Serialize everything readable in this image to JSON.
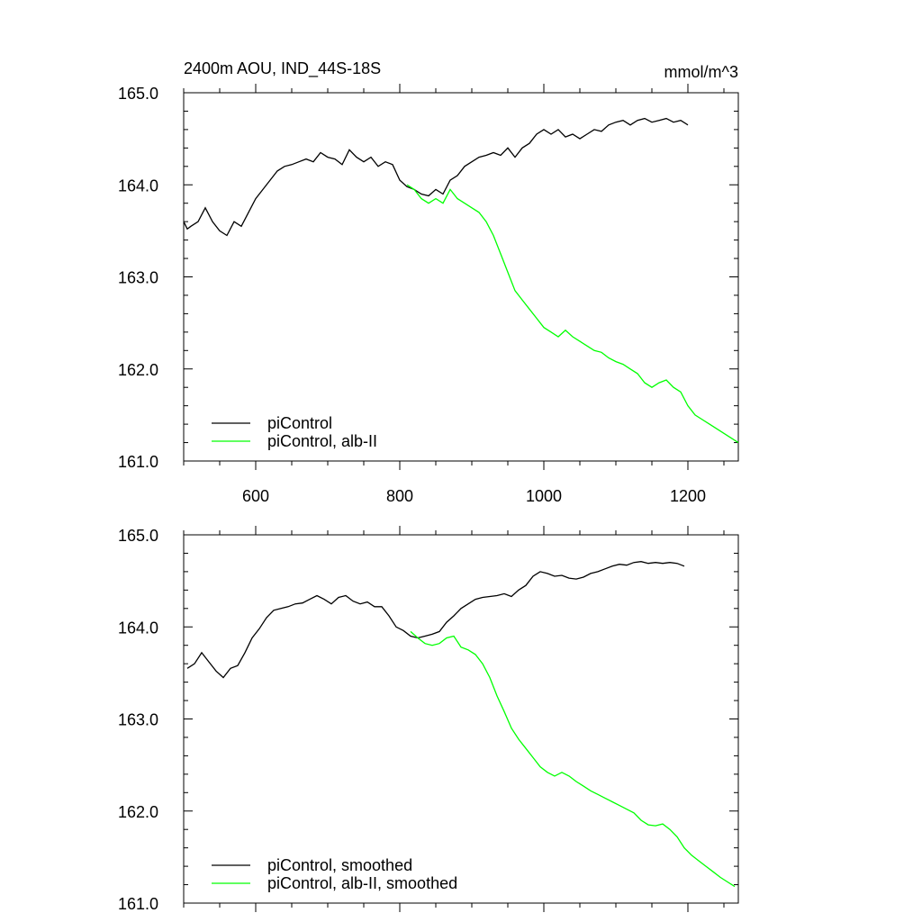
{
  "figure": {
    "title": "2400m AOU, IND_44S-18S",
    "units": "mmol/m^3"
  },
  "chart_data": [
    {
      "type": "line",
      "xlim": [
        500,
        1270
      ],
      "ylim": [
        161.0,
        165.0
      ],
      "xticks": [
        600,
        800,
        1000,
        1200
      ],
      "xtick_labels": [
        "600",
        "800",
        "1000",
        "1200"
      ],
      "yticks": [
        161.0,
        162.0,
        163.0,
        164.0,
        165.0
      ],
      "ytick_labels": [
        "161.0",
        "162.0",
        "163.0",
        "164.0",
        "165.0"
      ],
      "grid": false,
      "legend_position": "bottom-left",
      "series": [
        {
          "name": "piControl",
          "color": "#000000",
          "x": [
            500,
            505,
            510,
            520,
            530,
            540,
            550,
            560,
            570,
            580,
            590,
            600,
            610,
            620,
            630,
            640,
            650,
            660,
            670,
            680,
            690,
            700,
            710,
            720,
            730,
            740,
            750,
            760,
            770,
            780,
            790,
            800,
            810,
            820,
            830,
            840,
            850,
            860,
            870,
            880,
            890,
            900,
            910,
            920,
            930,
            940,
            950,
            960,
            970,
            980,
            990,
            1000,
            1010,
            1020,
            1030,
            1040,
            1050,
            1060,
            1070,
            1080,
            1090,
            1100,
            1110,
            1120,
            1130,
            1140,
            1150,
            1160,
            1170,
            1180,
            1190,
            1200
          ],
          "y": [
            163.6,
            163.52,
            163.55,
            163.6,
            163.75,
            163.6,
            163.5,
            163.45,
            163.6,
            163.55,
            163.7,
            163.85,
            163.95,
            164.05,
            164.15,
            164.2,
            164.22,
            164.25,
            164.28,
            164.25,
            164.35,
            164.3,
            164.28,
            164.22,
            164.38,
            164.3,
            164.25,
            164.3,
            164.2,
            164.25,
            164.22,
            164.05,
            163.98,
            163.95,
            163.9,
            163.88,
            163.95,
            163.9,
            164.05,
            164.1,
            164.2,
            164.25,
            164.3,
            164.32,
            164.35,
            164.32,
            164.4,
            164.3,
            164.4,
            164.45,
            164.55,
            164.6,
            164.55,
            164.6,
            164.52,
            164.55,
            164.5,
            164.55,
            164.6,
            164.58,
            164.65,
            164.68,
            164.7,
            164.65,
            164.7,
            164.72,
            164.68,
            164.7,
            164.72,
            164.68,
            164.7,
            164.65
          ]
        },
        {
          "name": "piControl, alb-II",
          "color": "#00ff00",
          "x": [
            810,
            820,
            830,
            840,
            850,
            860,
            870,
            880,
            890,
            900,
            910,
            920,
            930,
            940,
            950,
            960,
            970,
            980,
            990,
            1000,
            1010,
            1020,
            1030,
            1040,
            1050,
            1060,
            1070,
            1080,
            1090,
            1100,
            1110,
            1120,
            1130,
            1140,
            1150,
            1160,
            1170,
            1180,
            1190,
            1200,
            1210,
            1220,
            1230,
            1240,
            1250,
            1260,
            1270
          ],
          "y": [
            164.0,
            163.95,
            163.85,
            163.8,
            163.85,
            163.8,
            163.95,
            163.85,
            163.8,
            163.75,
            163.7,
            163.6,
            163.45,
            163.25,
            163.05,
            162.85,
            162.75,
            162.65,
            162.55,
            162.45,
            162.4,
            162.35,
            162.42,
            162.35,
            162.3,
            162.25,
            162.2,
            162.18,
            162.12,
            162.08,
            162.05,
            162.0,
            161.95,
            161.85,
            161.8,
            161.85,
            161.88,
            161.8,
            161.75,
            161.6,
            161.5,
            161.45,
            161.4,
            161.35,
            161.3,
            161.25,
            161.2
          ]
        }
      ]
    },
    {
      "type": "line",
      "xlim": [
        500,
        1270
      ],
      "ylim": [
        161.0,
        165.0
      ],
      "xticks": [
        600,
        800,
        1000,
        1200
      ],
      "yticks": [
        161.0,
        162.0,
        163.0,
        164.0,
        165.0
      ],
      "ytick_labels": [
        "161.0",
        "162.0",
        "163.0",
        "164.0",
        "165.0"
      ],
      "grid": false,
      "legend_position": "bottom-left",
      "series": [
        {
          "name": "piControl, smoothed",
          "color": "#000000",
          "x": [
            505,
            515,
            525,
            535,
            545,
            555,
            565,
            575,
            585,
            595,
            605,
            615,
            625,
            635,
            645,
            655,
            665,
            675,
            685,
            695,
            705,
            715,
            725,
            735,
            745,
            755,
            765,
            775,
            785,
            795,
            805,
            815,
            825,
            835,
            845,
            855,
            865,
            875,
            885,
            895,
            905,
            915,
            925,
            935,
            945,
            955,
            965,
            975,
            985,
            995,
            1005,
            1015,
            1025,
            1035,
            1045,
            1055,
            1065,
            1075,
            1085,
            1095,
            1105,
            1115,
            1125,
            1135,
            1145,
            1155,
            1165,
            1175,
            1185,
            1195
          ],
          "y": [
            163.55,
            163.6,
            163.72,
            163.62,
            163.52,
            163.45,
            163.55,
            163.58,
            163.72,
            163.88,
            163.98,
            164.1,
            164.18,
            164.2,
            164.22,
            164.25,
            164.26,
            164.3,
            164.34,
            164.3,
            164.25,
            164.32,
            164.34,
            164.28,
            164.25,
            164.27,
            164.22,
            164.22,
            164.12,
            164.0,
            163.96,
            163.9,
            163.88,
            163.9,
            163.92,
            163.95,
            164.05,
            164.12,
            164.2,
            164.25,
            164.3,
            164.32,
            164.33,
            164.34,
            164.36,
            164.33,
            164.4,
            164.45,
            164.55,
            164.6,
            164.58,
            164.55,
            164.56,
            164.53,
            164.52,
            164.54,
            164.58,
            164.6,
            164.63,
            164.66,
            164.68,
            164.67,
            164.7,
            164.71,
            164.69,
            164.7,
            164.69,
            164.7,
            164.69,
            164.66
          ]
        },
        {
          "name": "piControl, alb-II, smoothed",
          "color": "#00ff00",
          "x": [
            815,
            825,
            835,
            845,
            855,
            865,
            875,
            885,
            895,
            905,
            915,
            925,
            935,
            945,
            955,
            965,
            975,
            985,
            995,
            1005,
            1015,
            1025,
            1035,
            1045,
            1055,
            1065,
            1075,
            1085,
            1095,
            1105,
            1115,
            1125,
            1135,
            1145,
            1155,
            1165,
            1175,
            1185,
            1195,
            1205,
            1215,
            1225,
            1235,
            1245,
            1255,
            1265
          ],
          "y": [
            163.95,
            163.88,
            163.82,
            163.8,
            163.82,
            163.88,
            163.9,
            163.78,
            163.75,
            163.7,
            163.6,
            163.45,
            163.25,
            163.08,
            162.9,
            162.78,
            162.68,
            162.58,
            162.48,
            162.42,
            162.38,
            162.42,
            162.38,
            162.32,
            162.27,
            162.22,
            162.18,
            162.14,
            162.1,
            162.06,
            162.02,
            161.98,
            161.9,
            161.85,
            161.84,
            161.86,
            161.8,
            161.72,
            161.6,
            161.52,
            161.46,
            161.4,
            161.34,
            161.28,
            161.23,
            161.18
          ]
        }
      ]
    }
  ]
}
